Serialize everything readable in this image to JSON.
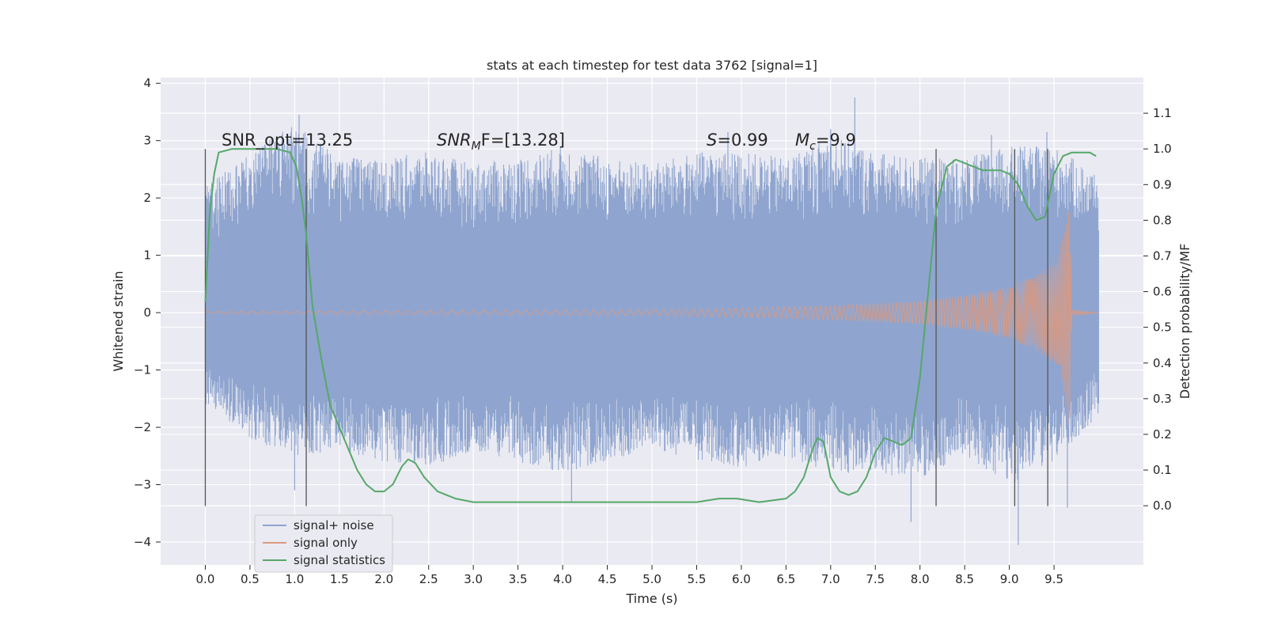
{
  "chart_data": {
    "type": "line",
    "title": "stats at each timestep for test data 3762 [signal=1]",
    "xlabel": "Time (s)",
    "ylabel": "Whitened strain",
    "y2label": "Detection probability/MF",
    "xlim": [
      -0.5,
      10.5
    ],
    "ylim": [
      -4.4,
      4.1
    ],
    "y2lim": [
      -0.166,
      1.2
    ],
    "x_ticks": [
      "0.0",
      "0.5",
      "1.0",
      "1.5",
      "2.0",
      "2.5",
      "3.0",
      "3.5",
      "4.0",
      "4.5",
      "5.0",
      "5.5",
      "6.0",
      "6.5",
      "7.0",
      "7.5",
      "8.0",
      "8.5",
      "9.0",
      "9.5"
    ],
    "y_ticks": [
      "−4",
      "−3",
      "−2",
      "−1",
      "0",
      "1",
      "2",
      "3",
      "4"
    ],
    "y2_ticks": [
      "0.0",
      "0.1",
      "0.2",
      "0.3",
      "0.4",
      "0.5",
      "0.6",
      "0.7",
      "0.8",
      "0.9",
      "1.0",
      "1.1"
    ],
    "grid": true,
    "legend_position": "lower-left",
    "annotations": {
      "snr_opt": "SNR_opt=13.25",
      "snr_mf_main": "SNR",
      "snr_mf_sub": "M",
      "snr_mf_rest": "F=[13.28]",
      "s_var": "S",
      "s_val": "=0.99",
      "mc_var": "M",
      "mc_sub": "c",
      "mc_val": "=9.9"
    },
    "vertical_lines_x": [
      0.0,
      1.13,
      8.18,
      9.06,
      9.43
    ],
    "series": [
      {
        "name": "signal+ noise",
        "color": "#8fa5cf",
        "x_range": [
          0.0,
          10.0
        ],
        "envelope": [
          {
            "x": 0.0,
            "hi": 2.2,
            "lo": -1.6
          },
          {
            "x": 0.5,
            "hi": 2.8,
            "lo": -2.2
          },
          {
            "x": 1.0,
            "hi": 3.3,
            "lo": -2.5
          },
          {
            "x": 1.5,
            "hi": 2.7,
            "lo": -2.4
          },
          {
            "x": 2.0,
            "hi": 2.7,
            "lo": -2.6
          },
          {
            "x": 2.5,
            "hi": 2.8,
            "lo": -2.7
          },
          {
            "x": 3.0,
            "hi": 2.6,
            "lo": -2.4
          },
          {
            "x": 3.5,
            "hi": 2.7,
            "lo": -2.6
          },
          {
            "x": 4.0,
            "hi": 2.9,
            "lo": -2.8
          },
          {
            "x": 4.5,
            "hi": 2.7,
            "lo": -2.6
          },
          {
            "x": 5.0,
            "hi": 2.6,
            "lo": -2.4
          },
          {
            "x": 5.5,
            "hi": 2.8,
            "lo": -2.6
          },
          {
            "x": 6.0,
            "hi": 2.8,
            "lo": -2.7
          },
          {
            "x": 6.5,
            "hi": 2.7,
            "lo": -2.5
          },
          {
            "x": 7.0,
            "hi": 3.1,
            "lo": -2.8
          },
          {
            "x": 7.5,
            "hi": 2.8,
            "lo": -2.8
          },
          {
            "x": 8.0,
            "hi": 2.7,
            "lo": -2.9
          },
          {
            "x": 8.5,
            "hi": 2.7,
            "lo": -2.5
          },
          {
            "x": 9.0,
            "hi": 2.9,
            "lo": -3.0
          },
          {
            "x": 9.5,
            "hi": 2.9,
            "lo": -2.6
          },
          {
            "x": 10.0,
            "hi": 2.4,
            "lo": -1.8
          }
        ],
        "notable_peaks": [
          {
            "x": 1.05,
            "y": 3.45
          },
          {
            "x": 7.27,
            "y": 3.75
          },
          {
            "x": 7.0,
            "y": 3.2
          },
          {
            "x": 9.42,
            "y": 3.15
          },
          {
            "x": 8.8,
            "y": 3.1
          },
          {
            "x": 5.85,
            "y": 3.15
          },
          {
            "x": 9.1,
            "y": -4.05
          },
          {
            "x": 7.9,
            "y": -3.65
          },
          {
            "x": 9.65,
            "y": -3.4
          },
          {
            "x": 4.1,
            "y": -3.3
          },
          {
            "x": 1.0,
            "y": -3.1
          }
        ]
      },
      {
        "name": "signal only",
        "color": "#dd9a80",
        "amplitude_envelope": [
          {
            "x": 0.0,
            "a": 0.02
          },
          {
            "x": 5.0,
            "a": 0.05
          },
          {
            "x": 6.0,
            "a": 0.08
          },
          {
            "x": 7.0,
            "a": 0.12
          },
          {
            "x": 8.0,
            "a": 0.2
          },
          {
            "x": 8.5,
            "a": 0.3
          },
          {
            "x": 9.0,
            "a": 0.45
          },
          {
            "x": 9.3,
            "a": 0.65
          },
          {
            "x": 9.55,
            "a": 0.95
          },
          {
            "x": 9.63,
            "a": 1.6
          },
          {
            "x": 9.67,
            "a": 2.2
          },
          {
            "x": 9.7,
            "a": 0.05
          },
          {
            "x": 10.0,
            "a": 0.0
          }
        ]
      },
      {
        "name": "signal statistics",
        "color": "#55a868",
        "axis": "right",
        "x": [
          0.0,
          0.05,
          0.1,
          0.15,
          0.3,
          0.5,
          0.8,
          0.95,
          1.02,
          1.08,
          1.13,
          1.2,
          1.3,
          1.4,
          1.5,
          1.6,
          1.7,
          1.8,
          1.9,
          2.0,
          2.1,
          2.2,
          2.27,
          2.35,
          2.45,
          2.6,
          2.8,
          3.0,
          3.5,
          4.0,
          4.5,
          5.0,
          5.5,
          5.75,
          5.85,
          5.95,
          6.2,
          6.5,
          6.6,
          6.7,
          6.8,
          6.85,
          6.92,
          7.0,
          7.1,
          7.2,
          7.3,
          7.4,
          7.5,
          7.6,
          7.7,
          7.8,
          7.9,
          8.0,
          8.1,
          8.18,
          8.3,
          8.4,
          8.5,
          8.7,
          8.9,
          9.0,
          9.1,
          9.2,
          9.3,
          9.4,
          9.5,
          9.6,
          9.7,
          9.8,
          9.9,
          9.97
        ],
        "y": [
          0.57,
          0.82,
          0.93,
          0.99,
          1.0,
          1.0,
          1.0,
          0.99,
          0.95,
          0.86,
          0.76,
          0.56,
          0.41,
          0.28,
          0.22,
          0.16,
          0.1,
          0.06,
          0.04,
          0.04,
          0.06,
          0.11,
          0.13,
          0.12,
          0.08,
          0.04,
          0.02,
          0.01,
          0.01,
          0.01,
          0.01,
          0.01,
          0.01,
          0.02,
          0.02,
          0.02,
          0.01,
          0.02,
          0.04,
          0.08,
          0.16,
          0.19,
          0.18,
          0.08,
          0.04,
          0.03,
          0.04,
          0.08,
          0.15,
          0.19,
          0.18,
          0.17,
          0.19,
          0.36,
          0.62,
          0.83,
          0.95,
          0.97,
          0.96,
          0.94,
          0.94,
          0.93,
          0.9,
          0.84,
          0.8,
          0.81,
          0.93,
          0.98,
          0.99,
          0.99,
          0.99,
          0.98
        ]
      }
    ]
  }
}
